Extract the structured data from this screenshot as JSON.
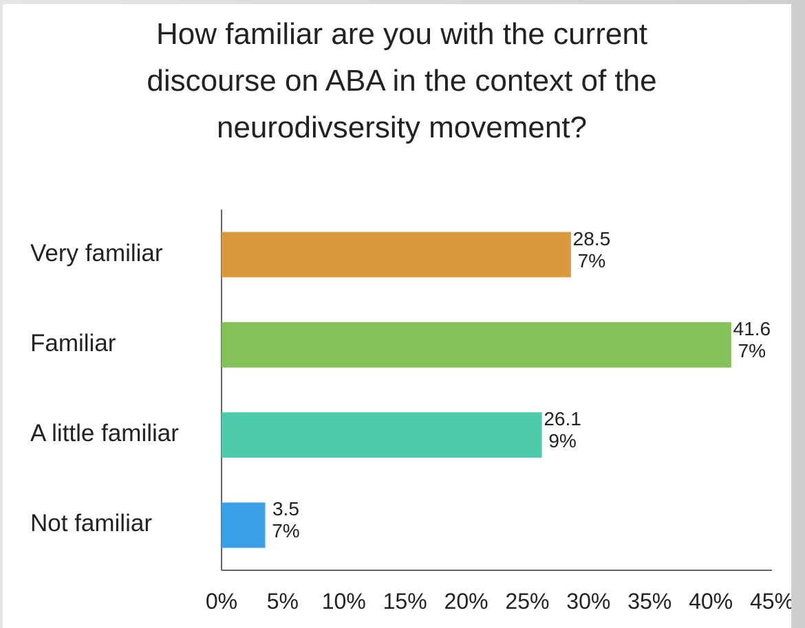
{
  "chart_data": {
    "type": "bar",
    "orientation": "horizontal",
    "title": "How familiar are you with the current discourse on ABA in the context of the neurodivsersity movement?",
    "categories": [
      "Very familiar",
      "Familiar",
      "A little familiar",
      "Not familiar"
    ],
    "values": [
      28.57,
      41.67,
      26.19,
      3.57
    ],
    "value_labels": [
      "28.57%",
      "41.67%",
      "26.19%",
      "3.57%"
    ],
    "colors": [
      "#d99a3c",
      "#84c156",
      "#4ecbad",
      "#3aa0e8"
    ],
    "xlim": [
      0,
      45
    ],
    "xticks": [
      {
        "value": 0,
        "label": "0%"
      },
      {
        "value": 5,
        "label": "5%"
      },
      {
        "value": 10,
        "label": "10%"
      },
      {
        "value": 15,
        "label": "15%"
      },
      {
        "value": 20,
        "label": "20%"
      },
      {
        "value": 25,
        "label": "25%"
      },
      {
        "value": 30,
        "label": "30%"
      },
      {
        "value": 35,
        "label": "35%"
      },
      {
        "value": 40,
        "label": "40%"
      },
      {
        "value": 45,
        "label": "45%"
      }
    ],
    "grid": false
  }
}
